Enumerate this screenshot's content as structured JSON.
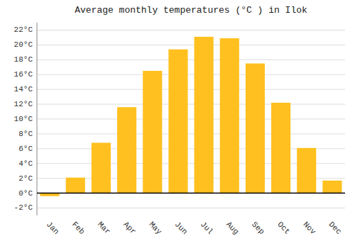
{
  "chart_data": {
    "type": "bar",
    "title": "Average monthly temperatures (°C ) in Ilok",
    "categories": [
      "Jan",
      "Feb",
      "Mar",
      "Apr",
      "May",
      "Jun",
      "Jul",
      "Aug",
      "Sep",
      "Oct",
      "Nov",
      "Dec"
    ],
    "values": [
      -0.4,
      2.1,
      6.8,
      11.6,
      16.5,
      19.4,
      21.1,
      20.9,
      17.5,
      12.2,
      6.1,
      1.7
    ],
    "color": "#FFC020",
    "ylim": [
      -3,
      23
    ],
    "yticks": [
      {
        "value": -2,
        "label": "-2°C"
      },
      {
        "value": 0,
        "label": "0°C"
      },
      {
        "value": 2,
        "label": "2°C"
      },
      {
        "value": 4,
        "label": "4°C"
      },
      {
        "value": 6,
        "label": "6°C"
      },
      {
        "value": 8,
        "label": "8°C"
      },
      {
        "value": 10,
        "label": "10°C"
      },
      {
        "value": 12,
        "label": "12°C"
      },
      {
        "value": 14,
        "label": "14°C"
      },
      {
        "value": 16,
        "label": "16°C"
      },
      {
        "value": 18,
        "label": "18°C"
      },
      {
        "value": 20,
        "label": "20°C"
      },
      {
        "value": 22,
        "label": "22°C"
      }
    ],
    "grid": true
  }
}
